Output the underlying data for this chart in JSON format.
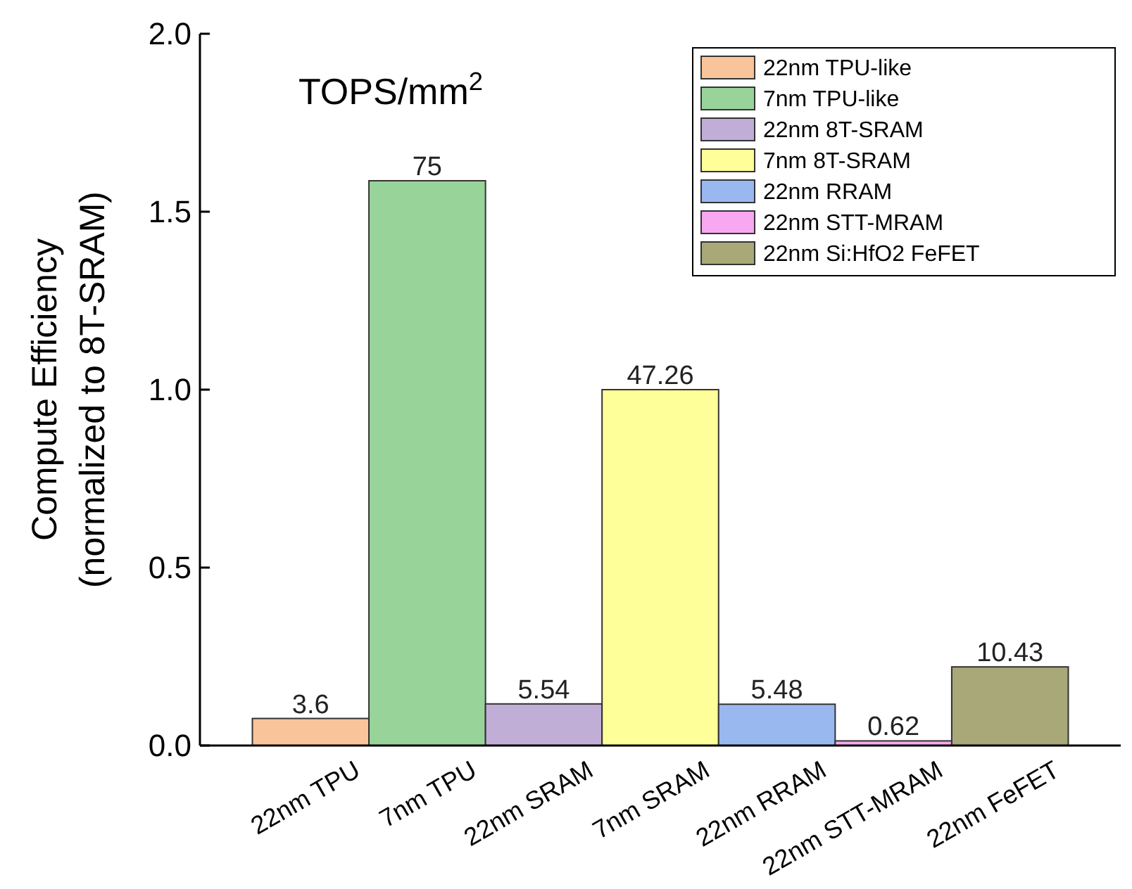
{
  "chart_data": {
    "type": "bar",
    "ylabel": "Compute Efficiency\n(normalized to 8T-SRAM)",
    "categories": [
      "22nm TPU",
      "7nm TPU",
      "22nm SRAM",
      "7nm SRAM",
      "22nm RRAM",
      "22nm STT-MRAM",
      "22nm FeFET"
    ],
    "series": [
      {
        "name": "22nm TPU-like",
        "color": "#f9c49a",
        "values": [
          0.076,
          null,
          null,
          null,
          null,
          null,
          null
        ]
      },
      {
        "name": "7nm TPU-like",
        "color": "#98d49a",
        "values": [
          null,
          1.587,
          null,
          null,
          null,
          null,
          null
        ]
      },
      {
        "name": "22nm 8T-SRAM",
        "color": "#c1aed6",
        "values": [
          null,
          null,
          0.117,
          null,
          null,
          null,
          null
        ]
      },
      {
        "name": "7nm 8T-SRAM",
        "color": "#ffff99",
        "values": [
          null,
          null,
          null,
          1.0,
          null,
          null,
          null
        ]
      },
      {
        "name": "22nm RRAM",
        "color": "#9ab8f0",
        "values": [
          null,
          null,
          null,
          null,
          0.116,
          null,
          null
        ]
      },
      {
        "name": "22nm STT-MRAM",
        "color": "#f7a8f0",
        "values": [
          null,
          null,
          null,
          null,
          null,
          0.013,
          null
        ]
      },
      {
        "name": "22nm Si:HfO2 FeFET",
        "color": "#a8a878",
        "values": [
          null,
          null,
          null,
          null,
          null,
          null,
          0.221
        ]
      }
    ],
    "ylim": [
      0,
      2.0
    ],
    "yticks": [
      {
        "value": 0,
        "label": "0.0"
      },
      {
        "value": 0.5,
        "label": "0.5"
      },
      {
        "value": 1,
        "label": "1.0"
      },
      {
        "value": 1.5,
        "label": "1.5"
      },
      {
        "value": 2,
        "label": "2.0"
      }
    ],
    "annotations": [
      "TOPS/mm$^{2}$",
      {
        "text": "3.6",
        "x": "22nm TPU",
        "y": 0.076
      },
      {
        "text": "75",
        "x": "7nm TPU",
        "y": 1.587
      },
      {
        "text": "5.54",
        "x": "22nm SRAM",
        "y": 0.117
      },
      {
        "text": "47.26",
        "x": "7nm SRAM",
        "y": 1.0
      },
      {
        "text": "5.48",
        "x": "22nm RRAM",
        "y": 0.116
      },
      {
        "text": "0.62",
        "x": "22nm STT-MRAM",
        "y": 0.013
      },
      {
        "text": "10.43",
        "x": "22nm FeFET",
        "y": 0.221
      }
    ],
    "legend": "top right",
    "grid": false
  }
}
